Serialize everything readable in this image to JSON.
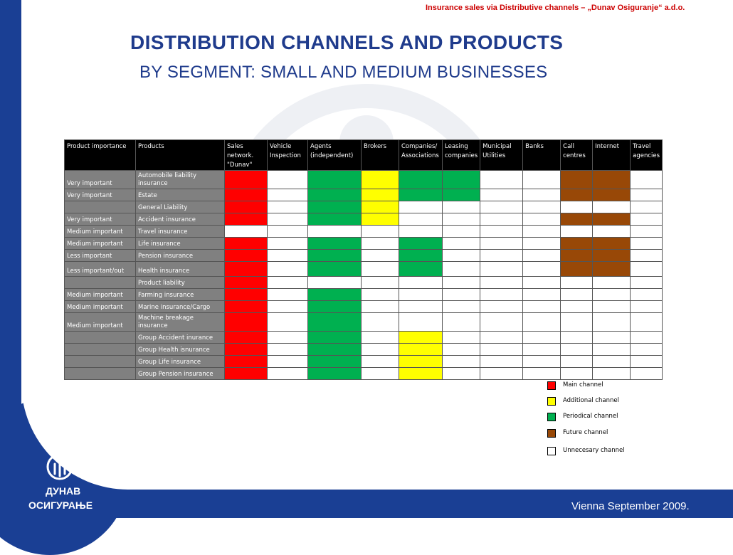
{
  "header": {
    "strip": "Insurance sales via Distributive channels – „Dunav Osiguranje“ a.d.o.",
    "title": "DISTRIBUTION CHANNELS AND PRODUCTS",
    "subtitle": "BY SEGMENT: SMALL AND MEDIUM BUSINESSES"
  },
  "colors": {
    "main": "#ff0000",
    "additional": "#ffff00",
    "periodical": "#00b050",
    "future": "#984807",
    "unnecessary": "#ffffff",
    "brand_blue": "#1a3f94",
    "header_red": "#cc0000"
  },
  "table": {
    "headers": [
      "Product importance",
      "Products",
      "Sales network. \"Dunav\"",
      "Vehicle Inspection",
      "Agents (independent)",
      "Brokers",
      "Companies/ Associations",
      "Leasing companies",
      "Municipal Utilities",
      "Banks",
      "Call centres",
      "Internet",
      "Travel agencies"
    ],
    "rows": [
      {
        "importance": "Very important",
        "product": "Automobile liability insurance",
        "cells": [
          "red",
          "wht",
          "grn",
          "yel",
          "grn",
          "grn",
          "wht",
          "wht",
          "brn",
          "brn",
          "wht"
        ]
      },
      {
        "importance": "Very important",
        "product": "Estate",
        "cells": [
          "red",
          "wht",
          "grn",
          "yel",
          "grn",
          "grn",
          "wht",
          "wht",
          "brn",
          "brn",
          "wht"
        ]
      },
      {
        "importance": "",
        "product": "General Liability",
        "cells": [
          "red",
          "wht",
          "grn",
          "yel",
          "wht",
          "wht",
          "wht",
          "wht",
          "wht",
          "wht",
          "wht"
        ]
      },
      {
        "importance": "Very important",
        "product": "Accident  insurance",
        "cells": [
          "red",
          "wht",
          "grn",
          "yel",
          "wht",
          "wht",
          "wht",
          "wht",
          "brn",
          "brn",
          "wht"
        ]
      },
      {
        "importance": "Medium important",
        "product": "Travel insurance",
        "cells": [
          "wht",
          "wht",
          "wht",
          "wht",
          "wht",
          "wht",
          "wht",
          "wht",
          "wht",
          "wht",
          "wht"
        ]
      },
      {
        "importance": "Medium important",
        "product": "Life insurance",
        "cells": [
          "red",
          "wht",
          "grn",
          "wht",
          "grn",
          "wht",
          "wht",
          "wht",
          "brn",
          "brn",
          "wht"
        ]
      },
      {
        "importance": "Less important",
        "product": "Pension insurance",
        "cells": [
          "red",
          "wht",
          "grn",
          "wht",
          "grn",
          "wht",
          "wht",
          "wht",
          "brn",
          "brn",
          "wht"
        ]
      },
      {
        "importance": "Less important/out",
        "product": "Health insurance",
        "cells": [
          "red",
          "wht",
          "grn",
          "wht",
          "grn",
          "wht",
          "wht",
          "wht",
          "brn",
          "brn",
          "wht"
        ]
      },
      {
        "importance": "",
        "product": "Product liability",
        "cells": [
          "red",
          "wht",
          "wht",
          "wht",
          "wht",
          "wht",
          "wht",
          "wht",
          "wht",
          "wht",
          "wht"
        ]
      },
      {
        "importance": "Medium important",
        "product": "Farming insurance",
        "cells": [
          "red",
          "wht",
          "grn",
          "wht",
          "wht",
          "wht",
          "wht",
          "wht",
          "wht",
          "wht",
          "wht"
        ]
      },
      {
        "importance": "Medium important",
        "product": "Marine insurance/Cargo",
        "cells": [
          "red",
          "wht",
          "grn",
          "wht",
          "wht",
          "wht",
          "wht",
          "wht",
          "wht",
          "wht",
          "wht"
        ]
      },
      {
        "importance": "Medium important",
        "product": "Machine breakage insurance",
        "cells": [
          "red",
          "wht",
          "grn",
          "wht",
          "wht",
          "wht",
          "wht",
          "wht",
          "wht",
          "wht",
          "wht"
        ]
      },
      {
        "importance": "",
        "product": "Group Accident inurance",
        "cells": [
          "red",
          "wht",
          "grn",
          "wht",
          "yel",
          "wht",
          "wht",
          "wht",
          "wht",
          "wht",
          "wht"
        ]
      },
      {
        "importance": "",
        "product": "Group Health isnurance",
        "cells": [
          "red",
          "wht",
          "grn",
          "wht",
          "yel",
          "wht",
          "wht",
          "wht",
          "wht",
          "wht",
          "wht"
        ]
      },
      {
        "importance": "",
        "product": "Group Life insurance",
        "cells": [
          "red",
          "wht",
          "grn",
          "wht",
          "yel",
          "wht",
          "wht",
          "wht",
          "wht",
          "wht",
          "wht"
        ]
      },
      {
        "importance": "",
        "product": "Group Pension insurance",
        "cells": [
          "red",
          "wht",
          "grn",
          "wht",
          "yel",
          "wht",
          "wht",
          "wht",
          "wht",
          "wht",
          "wht"
        ]
      }
    ]
  },
  "legend": [
    {
      "color": "#ff0000",
      "label": "Main channel"
    },
    {
      "color": "#ffff00",
      "label": "Additional channel"
    },
    {
      "color": "#00b050",
      "label": "Periodical channel"
    },
    {
      "color": "#984807",
      "label": "Future channel"
    },
    {
      "color": "#ffffff",
      "label": "Unnecesary channel"
    }
  ],
  "logo": {
    "line1": "ДУНАВ",
    "line2": "ОСИГУРАЊЕ",
    "icon": "dunav-logo-icon"
  },
  "footer": {
    "date": "Vienna September 2009."
  }
}
